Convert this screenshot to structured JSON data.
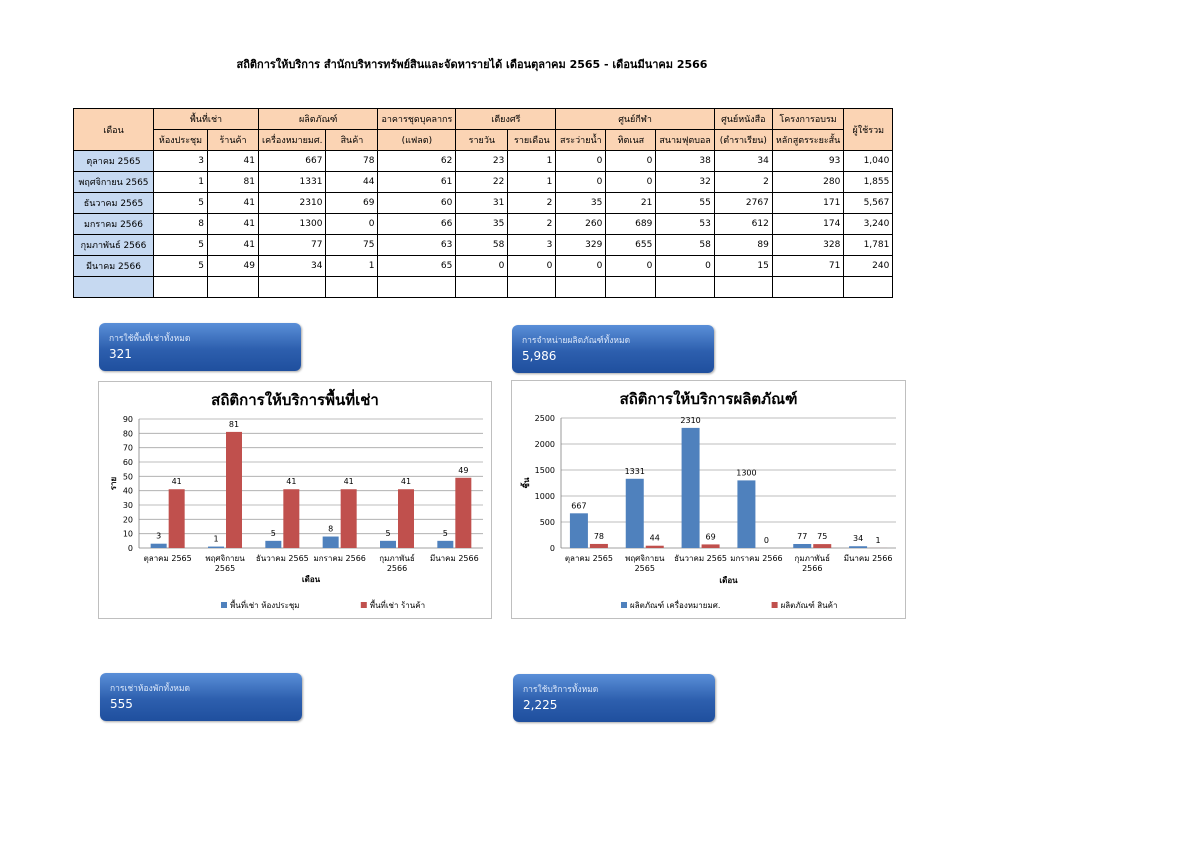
{
  "title": "สถิติการให้บริการ สำนักบริหารทรัพย์สินและจัดหารายได้ เดือนตุลาคม 2565 - เดือนมีนาคม 2566",
  "table": {
    "headers": {
      "month": "เดือน",
      "rent_space": "พื้นที่เช่า",
      "products": "ผลิตภัณฑ์",
      "staff_uniform_top": "อาคารชุดบุคลากร",
      "staff_uniform_bottom": "(แฟลต)",
      "srisri": "เตียงศรี",
      "sport": "ศูนย์กีฬา",
      "book_top": "ศูนย์หนังสือ",
      "book_bottom": "(ตำราเรียน)",
      "training_top": "โครงการอบรม",
      "training_bottom": "หลักสูตรระยะสั้น",
      "total": "ผู้ใช้รวม",
      "meeting_room": "ห้องประชุม",
      "shop": "ร้านค้า",
      "insignia": "เครื่องหมายมศ.",
      "goods": "สินค้า",
      "daily": "รายวัน",
      "monthly": "รายเดือน",
      "pool": "สระว่ายน้ำ",
      "tennis": "ทิตเนส",
      "football": "สนามฟุตบอล"
    },
    "rows": [
      {
        "month": "ตุลาคม 2565",
        "cells": [
          "3",
          "41",
          "667",
          "78",
          "62",
          "23",
          "1",
          "0",
          "0",
          "38",
          "34",
          "93",
          "1,040"
        ]
      },
      {
        "month": "พฤศจิกายน 2565",
        "cells": [
          "1",
          "81",
          "1331",
          "44",
          "61",
          "22",
          "1",
          "0",
          "0",
          "32",
          "2",
          "280",
          "1,855"
        ]
      },
      {
        "month": "ธันวาคม 2565",
        "cells": [
          "5",
          "41",
          "2310",
          "69",
          "60",
          "31",
          "2",
          "35",
          "21",
          "55",
          "2767",
          "171",
          "5,567"
        ]
      },
      {
        "month": "มกราคม 2566",
        "cells": [
          "8",
          "41",
          "1300",
          "0",
          "66",
          "35",
          "2",
          "260",
          "689",
          "53",
          "612",
          "174",
          "3,240"
        ]
      },
      {
        "month": "กุมภาพันธ์ 2566",
        "cells": [
          "5",
          "41",
          "77",
          "75",
          "63",
          "58",
          "3",
          "329",
          "655",
          "58",
          "89",
          "328",
          "1,781"
        ]
      },
      {
        "month": "มีนาคม 2566",
        "cells": [
          "5",
          "49",
          "34",
          "1",
          "65",
          "0",
          "0",
          "0",
          "0",
          "0",
          "15",
          "71",
          "240"
        ]
      }
    ]
  },
  "cards": {
    "rent": {
      "label": "การใช้พื้นที่เช่าทั้งหมด",
      "value": "321"
    },
    "product": {
      "label": "การจำหน่ายผลิตภัณฑ์ทั้งหมด",
      "value": "5,986"
    },
    "room": {
      "label": "การเช่าห้องพักทั้งหมด",
      "value": "555"
    },
    "service": {
      "label": "การใช้บริการทั้งหมด",
      "value": "2,225"
    }
  },
  "colors": {
    "series_blue": "#4f81bd",
    "series_red": "#c0504d",
    "card": "#2d5fae",
    "header": "#fbd4b4",
    "month_cell": "#c6d9f1"
  },
  "chart_data": [
    {
      "type": "bar",
      "title": "สถิติการให้บริการพื้นที่เช่า",
      "xlabel": "เดือน",
      "ylabel": "ราย",
      "categories": [
        [
          "ตุลาคม 2565"
        ],
        [
          "พฤศจิกายน",
          "2565"
        ],
        [
          "ธันวาคม 2565"
        ],
        [
          "มกราคม 2566"
        ],
        [
          "กุมภาพันธ์",
          "2566"
        ],
        [
          "มีนาคม 2566"
        ]
      ],
      "series": [
        {
          "name": "พื้นที่เช่า ห้องประชุม",
          "color": "#4f81bd",
          "values": [
            3,
            1,
            5,
            8,
            5,
            5
          ]
        },
        {
          "name": "พื้นที่เช่า ร้านค้า",
          "color": "#c0504d",
          "values": [
            41,
            81,
            41,
            41,
            41,
            49
          ]
        }
      ],
      "ylim": [
        0,
        90
      ],
      "yticks": [
        0,
        10,
        20,
        30,
        40,
        50,
        60,
        70,
        80,
        90
      ],
      "grid": true,
      "legend": "bottom"
    },
    {
      "type": "bar",
      "title": "สถิติการให้บริการผลิตภัณฑ์",
      "xlabel": "เดือน",
      "ylabel": "ชิ้น",
      "categories": [
        [
          "ตุลาคม 2565"
        ],
        [
          "พฤศจิกายน",
          "2565"
        ],
        [
          "ธันวาคม 2565"
        ],
        [
          "มกราคม 2566"
        ],
        [
          "กุมภาพันธ์",
          "2566"
        ],
        [
          "มีนาคม 2566"
        ]
      ],
      "series": [
        {
          "name": "ผลิตภัณฑ์ เครื่องหมายมศ.",
          "color": "#4f81bd",
          "values": [
            667,
            1331,
            2310,
            1300,
            77,
            34
          ]
        },
        {
          "name": "ผลิตภัณฑ์ สินค้า",
          "color": "#c0504d",
          "values": [
            78,
            44,
            69,
            0,
            75,
            1
          ]
        }
      ],
      "ylim": [
        0,
        2500
      ],
      "yticks": [
        0,
        500,
        1000,
        1500,
        2000,
        2500
      ],
      "grid": true,
      "legend": "bottom"
    }
  ]
}
